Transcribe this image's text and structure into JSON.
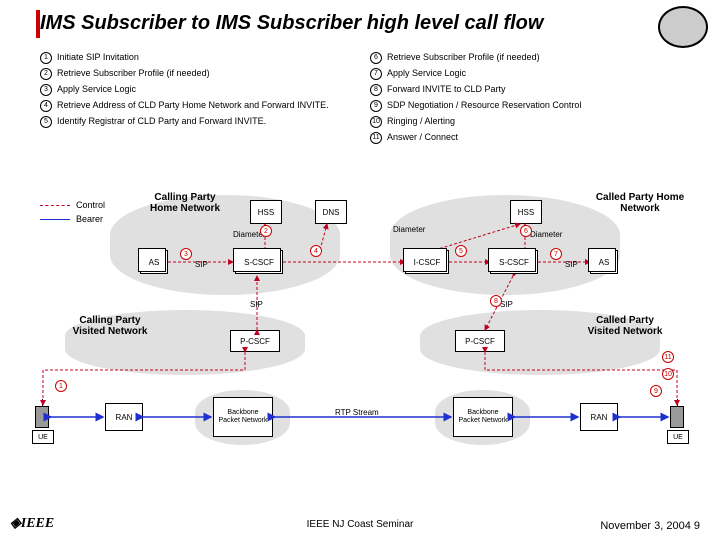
{
  "title": "IMS Subscriber to IMS Subscriber high level call flow",
  "steps_left": [
    {
      "n": "1",
      "t": "Initiate SIP Invitation"
    },
    {
      "n": "2",
      "t": "Retrieve Subscriber Profile (if needed)"
    },
    {
      "n": "3",
      "t": "Apply Service Logic"
    },
    {
      "n": "4",
      "t": "Retrieve Address of CLD Party Home Network and Forward INVITE."
    },
    {
      "n": "5",
      "t": "Identify Registrar of CLD Party and Forward INVITE."
    }
  ],
  "steps_right": [
    {
      "n": "6",
      "t": "Retrieve Subscriber Profile (if needed)"
    },
    {
      "n": "7",
      "t": "Apply Service Logic"
    },
    {
      "n": "8",
      "t": "Forward INVITE to CLD Party"
    },
    {
      "n": "9",
      "t": "SDP Negotiation / Resource Reservation Control"
    },
    {
      "n": "10",
      "t": "Ringing / Alerting"
    },
    {
      "n": "11",
      "t": "Answer / Connect"
    }
  ],
  "legend": {
    "control": "Control",
    "bearer": "Bearer"
  },
  "labels": {
    "calling_home": "Calling Party Home Network",
    "called_home": "Called Party Home Network",
    "calling_visited": "Calling Party Visited Network",
    "called_visited": "Called Party Visited Network",
    "hss": "HSS",
    "dns": "DNS",
    "as": "AS",
    "scscf": "S-CSCF",
    "icscf": "I-CSCF",
    "pcscf": "P-CSCF",
    "ran": "RAN",
    "ue": "UE",
    "backbone": "Backbone Packet Network",
    "rtp": "RTP Stream",
    "diameter": "Diameter",
    "sip": "SIP"
  },
  "footer": {
    "center": "IEEE NJ Coast Seminar",
    "right": "November 3, 2004  9",
    "ieee": "◈IEEE"
  },
  "colors": {
    "red": "#c00020",
    "blue": "#2030d0",
    "grey": "#d8d8d8"
  }
}
